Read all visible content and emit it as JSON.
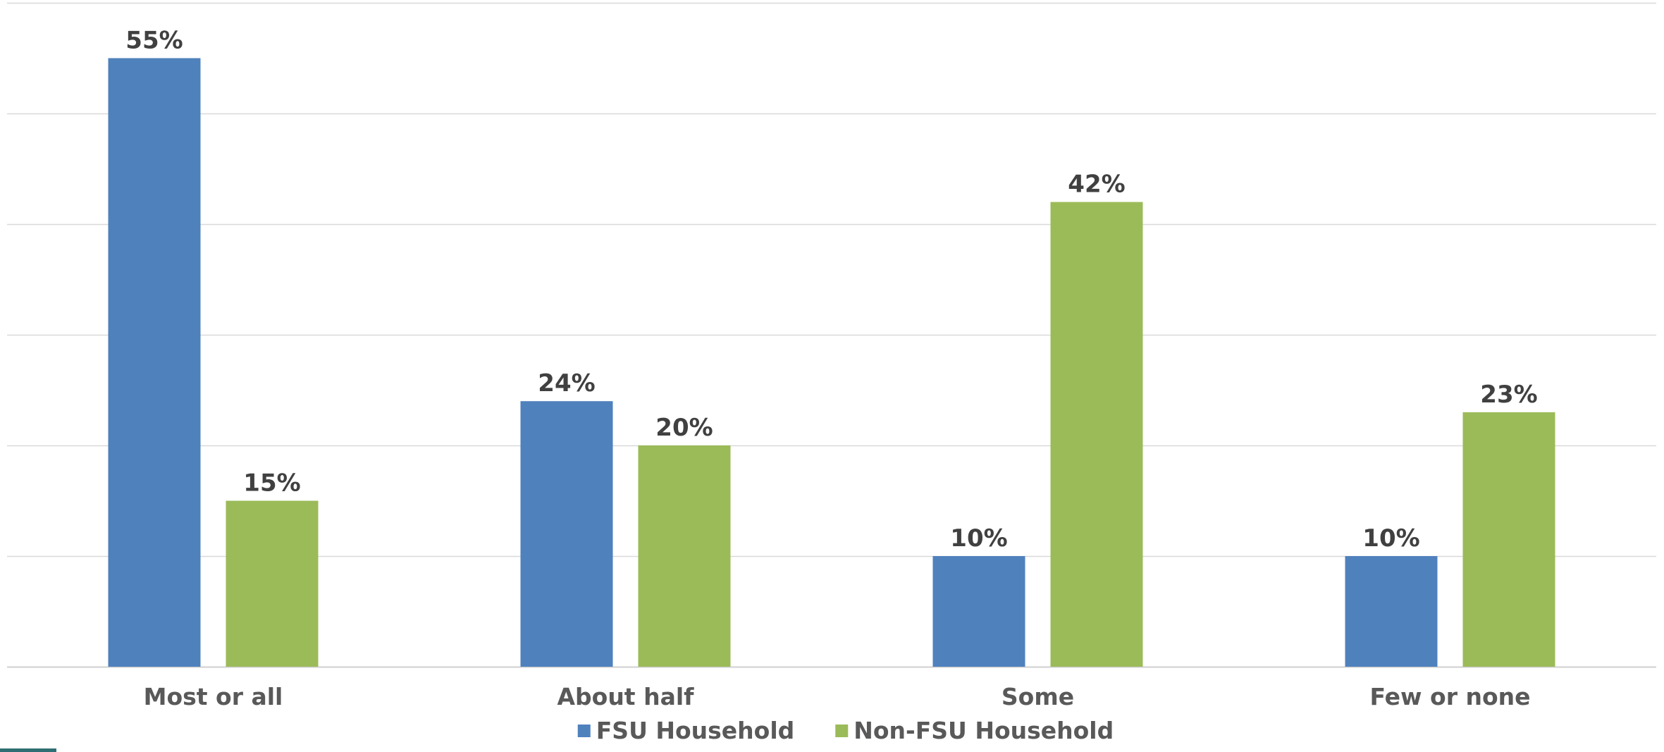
{
  "chart_data": {
    "type": "bar",
    "categories": [
      "Most or all",
      "About half",
      "Some",
      "Few or none"
    ],
    "series": [
      {
        "name": "FSU Household",
        "values": [
          55,
          24,
          10,
          10
        ],
        "labels": [
          "55%",
          "24%",
          "10%",
          "10%"
        ],
        "color": "#4f81bd"
      },
      {
        "name": "Non-FSU Household",
        "values": [
          15,
          20,
          42,
          23
        ],
        "labels": [
          "15%",
          "20%",
          "42%",
          "23%"
        ],
        "color": "#9bbb59"
      }
    ],
    "title": "",
    "xlabel": "",
    "ylabel": "",
    "ylim": [
      0,
      60
    ],
    "grid": true,
    "legend": "bottom"
  }
}
